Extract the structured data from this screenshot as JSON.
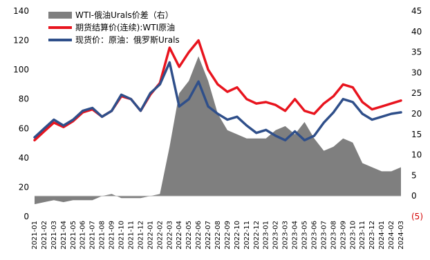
{
  "chart_data": {
    "type": "line",
    "y_left": {
      "ylim": [
        0,
        140
      ],
      "ticks": [
        "0",
        "20",
        "40",
        "60",
        "80",
        "100",
        "120",
        "140"
      ]
    },
    "y_right": {
      "ylim": [
        -5,
        45
      ],
      "ticks": [
        "(5)",
        "0",
        "5",
        "10",
        "15",
        "20",
        "25",
        "30",
        "35",
        "40",
        "45"
      ]
    },
    "x": {
      "tick_labels": [
        "2021-01",
        "2021-02",
        "2021-03",
        "2021-04",
        "2021-05",
        "2021-06",
        "2021-07",
        "2021-08",
        "2021-09",
        "2021-10",
        "2021-11",
        "2021-12",
        "2022-01",
        "2022-02",
        "2022-03",
        "2022-04",
        "2022-05",
        "2022-06",
        "2022-07",
        "2022-08",
        "2022-09",
        "2022-10",
        "2022-11",
        "2022-12",
        "2023-01",
        "2023-02",
        "2023-03",
        "2023-04",
        "2023-05",
        "2023-06",
        "2023-07",
        "2023-08",
        "2023-09",
        "2023-10",
        "2023-11",
        "2023-12",
        "2024-01",
        "2024-02",
        "2024-03"
      ]
    },
    "legend_position": "top-left",
    "series": [
      {
        "name": "WTI-俄油Urals价差（右）",
        "kind": "area",
        "axis": "right",
        "color": "#7f7f7f",
        "x": [
          "2021-01",
          "2021-02",
          "2021-03",
          "2021-04",
          "2021-05",
          "2021-06",
          "2021-07",
          "2021-08",
          "2021-09",
          "2021-10",
          "2021-11",
          "2021-12",
          "2022-01",
          "2022-02",
          "2022-03",
          "2022-04",
          "2022-05",
          "2022-06",
          "2022-07",
          "2022-08",
          "2022-09",
          "2022-10",
          "2022-11",
          "2022-12",
          "2023-01",
          "2023-02",
          "2023-03",
          "2023-04",
          "2023-05",
          "2023-06",
          "2023-07",
          "2023-08",
          "2023-09",
          "2023-10",
          "2023-11",
          "2023-12",
          "2024-01",
          "2024-02",
          "2024-03"
        ],
        "values": [
          -2,
          -1.5,
          -1,
          -1.5,
          -1,
          -1,
          -1,
          0,
          0.5,
          -0.5,
          -0.5,
          -0.5,
          0,
          0.5,
          12,
          25,
          28,
          34,
          28,
          20,
          16,
          15,
          14,
          14,
          14,
          16,
          17,
          15,
          18,
          14,
          11,
          12,
          14,
          13,
          8,
          7,
          6,
          6,
          7
        ]
      },
      {
        "name": "期货结算价(连续):WTI原油",
        "kind": "line",
        "axis": "left",
        "color": "#e8141e",
        "x": [
          "2021-01",
          "2021-02",
          "2021-03",
          "2021-04",
          "2021-05",
          "2021-06",
          "2021-07",
          "2021-08",
          "2021-09",
          "2021-10",
          "2021-11",
          "2021-12",
          "2022-01",
          "2022-02",
          "2022-03",
          "2022-04",
          "2022-05",
          "2022-06",
          "2022-07",
          "2022-08",
          "2022-09",
          "2022-10",
          "2022-11",
          "2022-12",
          "2023-01",
          "2023-02",
          "2023-03",
          "2023-04",
          "2023-05",
          "2023-06",
          "2023-07",
          "2023-08",
          "2023-09",
          "2023-10",
          "2023-11",
          "2023-12",
          "2024-01",
          "2024-02",
          "2024-03"
        ],
        "values": [
          52,
          58,
          64,
          61,
          65,
          71,
          73,
          68,
          72,
          82,
          80,
          72,
          83,
          91,
          115,
          102,
          112,
          120,
          100,
          90,
          85,
          88,
          80,
          77,
          78,
          76,
          72,
          80,
          72,
          70,
          77,
          82,
          90,
          88,
          78,
          73,
          75,
          77,
          79
        ]
      },
      {
        "name": "现货价：原油：俄罗斯Urals",
        "kind": "line",
        "axis": "left",
        "color": "#2f4f8a",
        "x": [
          "2021-01",
          "2021-02",
          "2021-03",
          "2021-04",
          "2021-05",
          "2021-06",
          "2021-07",
          "2021-08",
          "2021-09",
          "2021-10",
          "2021-11",
          "2021-12",
          "2022-01",
          "2022-02",
          "2022-03",
          "2022-04",
          "2022-05",
          "2022-06",
          "2022-07",
          "2022-08",
          "2022-09",
          "2022-10",
          "2022-11",
          "2022-12",
          "2023-01",
          "2023-02",
          "2023-03",
          "2023-04",
          "2023-05",
          "2023-06",
          "2023-07",
          "2023-08",
          "2023-09",
          "2023-10",
          "2023-11",
          "2023-12",
          "2024-01",
          "2024-02",
          "2024-03"
        ],
        "values": [
          54,
          60,
          66,
          62,
          66,
          72,
          74,
          68,
          72,
          83,
          80,
          72,
          84,
          90,
          105,
          75,
          80,
          92,
          75,
          70,
          66,
          68,
          62,
          57,
          59,
          55,
          52,
          58,
          52,
          55,
          64,
          71,
          80,
          78,
          70,
          66,
          68,
          70,
          71
        ]
      }
    ]
  }
}
